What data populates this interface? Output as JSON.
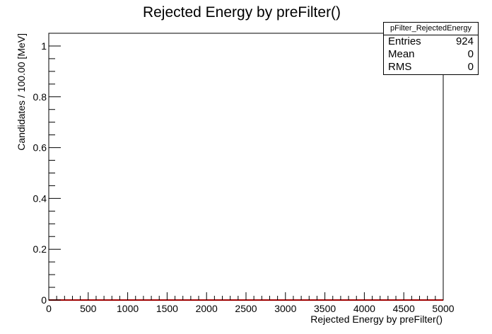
{
  "chart_data": {
    "type": "histogram",
    "title": "Rejected Energy by preFilter()",
    "xlabel": "Rejected Energy by preFilter()",
    "ylabel": "Candidates / 100.00 [MeV]",
    "xlim": [
      0,
      5000
    ],
    "ylim": [
      0,
      1.05
    ],
    "bin_width": 100,
    "x_ticks": [
      0,
      500,
      1000,
      1500,
      2000,
      2500,
      3000,
      3500,
      4000,
      4500,
      5000
    ],
    "y_ticks": [
      0,
      0.2,
      0.4,
      0.6,
      0.8,
      1
    ],
    "values": [
      0,
      0,
      0,
      0,
      0,
      0,
      0,
      0,
      0,
      0,
      0,
      0,
      0,
      0,
      0,
      0,
      0,
      0,
      0,
      0,
      0,
      0,
      0,
      0,
      0,
      0,
      0,
      0,
      0,
      0,
      0,
      0,
      0,
      0,
      0,
      0,
      0,
      0,
      0,
      0,
      0,
      0,
      0,
      0,
      0,
      0,
      0,
      0,
      0,
      0
    ],
    "line_color": "#a00000",
    "grid": false,
    "legend": "top-right"
  },
  "stats": {
    "title": "pFilter_RejectedEnergy",
    "rows": [
      {
        "label": "Entries",
        "value": "924"
      },
      {
        "label": "Mean",
        "value": "0"
      },
      {
        "label": "RMS",
        "value": "0"
      }
    ]
  }
}
